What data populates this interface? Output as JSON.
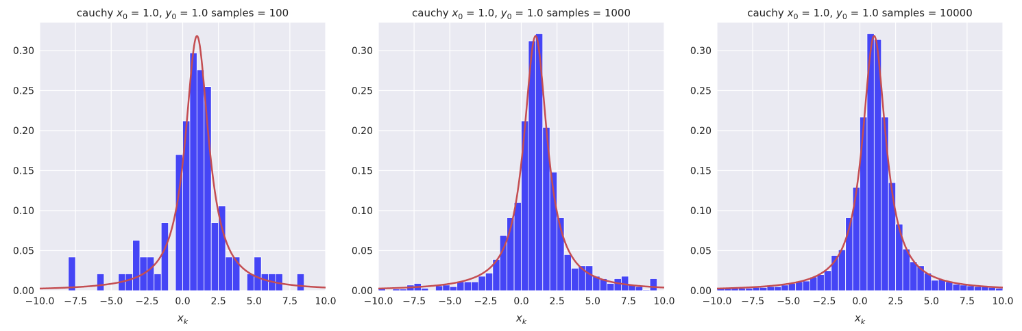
{
  "colors": {
    "background": "#eaeaf2",
    "grid": "#ffffff",
    "bar": "#4545f5",
    "curve": "#c44e52"
  },
  "chart_data": [
    {
      "type": "bar",
      "title": "cauchy x0 = 1.0, y0 = 1.0  samples = 100",
      "title_parts": {
        "pre": "cauchy ",
        "x0": "1.0",
        "y0": "1.0",
        "post": "samples = 100"
      },
      "xlabel": "x_k",
      "xlim": [
        -10,
        10
      ],
      "ylim": [
        0,
        0.335
      ],
      "xticks": [
        "-10.0",
        "-7.5",
        "-5.0",
        "-2.5",
        "0.0",
        "2.5",
        "5.0",
        "7.5",
        "10.0"
      ],
      "yticks": [
        "0.00",
        "0.05",
        "0.10",
        "0.15",
        "0.20",
        "0.25",
        "0.30"
      ],
      "grid": true,
      "overlay": {
        "type": "line",
        "name": "cauchy pdf",
        "x0": 1.0,
        "gamma": 1.0
      },
      "bin_width": 0.5,
      "bins": [
        {
          "x": -8.0,
          "h": 0.042
        },
        {
          "x": -6.0,
          "h": 0.021
        },
        {
          "x": -4.5,
          "h": 0.021
        },
        {
          "x": -4.0,
          "h": 0.021
        },
        {
          "x": -3.5,
          "h": 0.063
        },
        {
          "x": -3.0,
          "h": 0.042
        },
        {
          "x": -2.5,
          "h": 0.042
        },
        {
          "x": -2.0,
          "h": 0.021
        },
        {
          "x": -1.5,
          "h": 0.085
        },
        {
          "x": -0.5,
          "h": 0.17
        },
        {
          "x": 0.0,
          "h": 0.212
        },
        {
          "x": 0.5,
          "h": 0.297
        },
        {
          "x": 1.0,
          "h": 0.276
        },
        {
          "x": 1.5,
          "h": 0.255
        },
        {
          "x": 2.0,
          "h": 0.085
        },
        {
          "x": 2.5,
          "h": 0.106
        },
        {
          "x": 3.0,
          "h": 0.042
        },
        {
          "x": 3.5,
          "h": 0.042
        },
        {
          "x": 4.5,
          "h": 0.021
        },
        {
          "x": 5.0,
          "h": 0.042
        },
        {
          "x": 5.5,
          "h": 0.021
        },
        {
          "x": 6.0,
          "h": 0.021
        },
        {
          "x": 6.5,
          "h": 0.021
        },
        {
          "x": 8.0,
          "h": 0.021
        }
      ]
    },
    {
      "type": "bar",
      "title": "cauchy x0 = 1.0, y0 = 1.0  samples = 1000",
      "title_parts": {
        "pre": "cauchy ",
        "x0": "1.0",
        "y0": "1.0",
        "post": "samples = 1000"
      },
      "xlabel": "x_k",
      "xlim": [
        -10,
        10
      ],
      "ylim": [
        0,
        0.335
      ],
      "xticks": [
        "-10.0",
        "-7.5",
        "-5.0",
        "-2.5",
        "0.0",
        "2.5",
        "5.0",
        "7.5",
        "10.0"
      ],
      "yticks": [
        "0.00",
        "0.05",
        "0.10",
        "0.15",
        "0.20",
        "0.25",
        "0.30"
      ],
      "grid": true,
      "overlay": {
        "type": "line",
        "name": "cauchy pdf",
        "x0": 1.0,
        "gamma": 1.0
      },
      "bin_width": 0.5,
      "bins": [
        {
          "x": -10.0,
          "h": 0.002
        },
        {
          "x": -9.0,
          "h": 0.002
        },
        {
          "x": -8.5,
          "h": 0.002
        },
        {
          "x": -8.0,
          "h": 0.007
        },
        {
          "x": -7.5,
          "h": 0.009
        },
        {
          "x": -7.0,
          "h": 0.003
        },
        {
          "x": -6.0,
          "h": 0.006
        },
        {
          "x": -5.5,
          "h": 0.007
        },
        {
          "x": -5.0,
          "h": 0.005
        },
        {
          "x": -4.5,
          "h": 0.011
        },
        {
          "x": -4.0,
          "h": 0.011
        },
        {
          "x": -3.5,
          "h": 0.011
        },
        {
          "x": -3.0,
          "h": 0.018
        },
        {
          "x": -2.5,
          "h": 0.022
        },
        {
          "x": -2.0,
          "h": 0.039
        },
        {
          "x": -1.5,
          "h": 0.069
        },
        {
          "x": -1.0,
          "h": 0.091
        },
        {
          "x": -0.5,
          "h": 0.11
        },
        {
          "x": 0.0,
          "h": 0.212
        },
        {
          "x": 0.5,
          "h": 0.312
        },
        {
          "x": 1.0,
          "h": 0.321
        },
        {
          "x": 1.5,
          "h": 0.204
        },
        {
          "x": 2.0,
          "h": 0.148
        },
        {
          "x": 2.5,
          "h": 0.091
        },
        {
          "x": 3.0,
          "h": 0.045
        },
        {
          "x": 3.5,
          "h": 0.028
        },
        {
          "x": 4.0,
          "h": 0.031
        },
        {
          "x": 4.5,
          "h": 0.031
        },
        {
          "x": 5.0,
          "h": 0.018
        },
        {
          "x": 5.5,
          "h": 0.015
        },
        {
          "x": 6.0,
          "h": 0.009
        },
        {
          "x": 6.5,
          "h": 0.015
        },
        {
          "x": 7.0,
          "h": 0.018
        },
        {
          "x": 7.5,
          "h": 0.007
        },
        {
          "x": 8.0,
          "h": 0.005
        },
        {
          "x": 8.5,
          "h": 0.001
        },
        {
          "x": 9.0,
          "h": 0.015
        }
      ]
    },
    {
      "type": "bar",
      "title": "cauchy x0 = 1.0, y0 = 1.0  samples = 10000",
      "title_parts": {
        "pre": "cauchy ",
        "x0": "1.0",
        "y0": "1.0",
        "post": "samples = 10000"
      },
      "xlabel": "x_k",
      "xlim": [
        -10,
        10
      ],
      "ylim": [
        0,
        0.335
      ],
      "xticks": [
        "-10.0",
        "-7.5",
        "-5.0",
        "-2.5",
        "0.0",
        "2.5",
        "5.0",
        "7.5",
        "10.0"
      ],
      "yticks": [
        "0.00",
        "0.05",
        "0.10",
        "0.15",
        "0.20",
        "0.25",
        "0.30"
      ],
      "grid": true,
      "overlay": {
        "type": "line",
        "name": "cauchy pdf",
        "x0": 1.0,
        "gamma": 1.0
      },
      "bin_width": 0.5,
      "bins": [
        {
          "x": -10.0,
          "h": 0.003
        },
        {
          "x": -9.5,
          "h": 0.003
        },
        {
          "x": -9.0,
          "h": 0.003
        },
        {
          "x": -8.5,
          "h": 0.003
        },
        {
          "x": -8.0,
          "h": 0.003
        },
        {
          "x": -7.5,
          "h": 0.004
        },
        {
          "x": -7.0,
          "h": 0.004
        },
        {
          "x": -6.5,
          "h": 0.005
        },
        {
          "x": -6.0,
          "h": 0.005
        },
        {
          "x": -5.5,
          "h": 0.007
        },
        {
          "x": -5.0,
          "h": 0.009
        },
        {
          "x": -4.5,
          "h": 0.011
        },
        {
          "x": -4.0,
          "h": 0.012
        },
        {
          "x": -3.5,
          "h": 0.017
        },
        {
          "x": -3.0,
          "h": 0.02
        },
        {
          "x": -2.5,
          "h": 0.025
        },
        {
          "x": -2.0,
          "h": 0.044
        },
        {
          "x": -1.5,
          "h": 0.051
        },
        {
          "x": -1.0,
          "h": 0.091
        },
        {
          "x": -0.5,
          "h": 0.129
        },
        {
          "x": 0.0,
          "h": 0.217
        },
        {
          "x": 0.5,
          "h": 0.321
        },
        {
          "x": 1.0,
          "h": 0.314
        },
        {
          "x": 1.5,
          "h": 0.217
        },
        {
          "x": 2.0,
          "h": 0.135
        },
        {
          "x": 2.5,
          "h": 0.083
        },
        {
          "x": 3.0,
          "h": 0.052
        },
        {
          "x": 3.5,
          "h": 0.036
        },
        {
          "x": 4.0,
          "h": 0.031
        },
        {
          "x": 4.5,
          "h": 0.022
        },
        {
          "x": 5.0,
          "h": 0.013
        },
        {
          "x": 5.5,
          "h": 0.014
        },
        {
          "x": 6.0,
          "h": 0.011
        },
        {
          "x": 6.5,
          "h": 0.008
        },
        {
          "x": 7.0,
          "h": 0.007
        },
        {
          "x": 7.5,
          "h": 0.006
        },
        {
          "x": 8.0,
          "h": 0.005
        },
        {
          "x": 8.5,
          "h": 0.005
        },
        {
          "x": 9.0,
          "h": 0.004
        },
        {
          "x": 9.5,
          "h": 0.003
        }
      ]
    }
  ]
}
